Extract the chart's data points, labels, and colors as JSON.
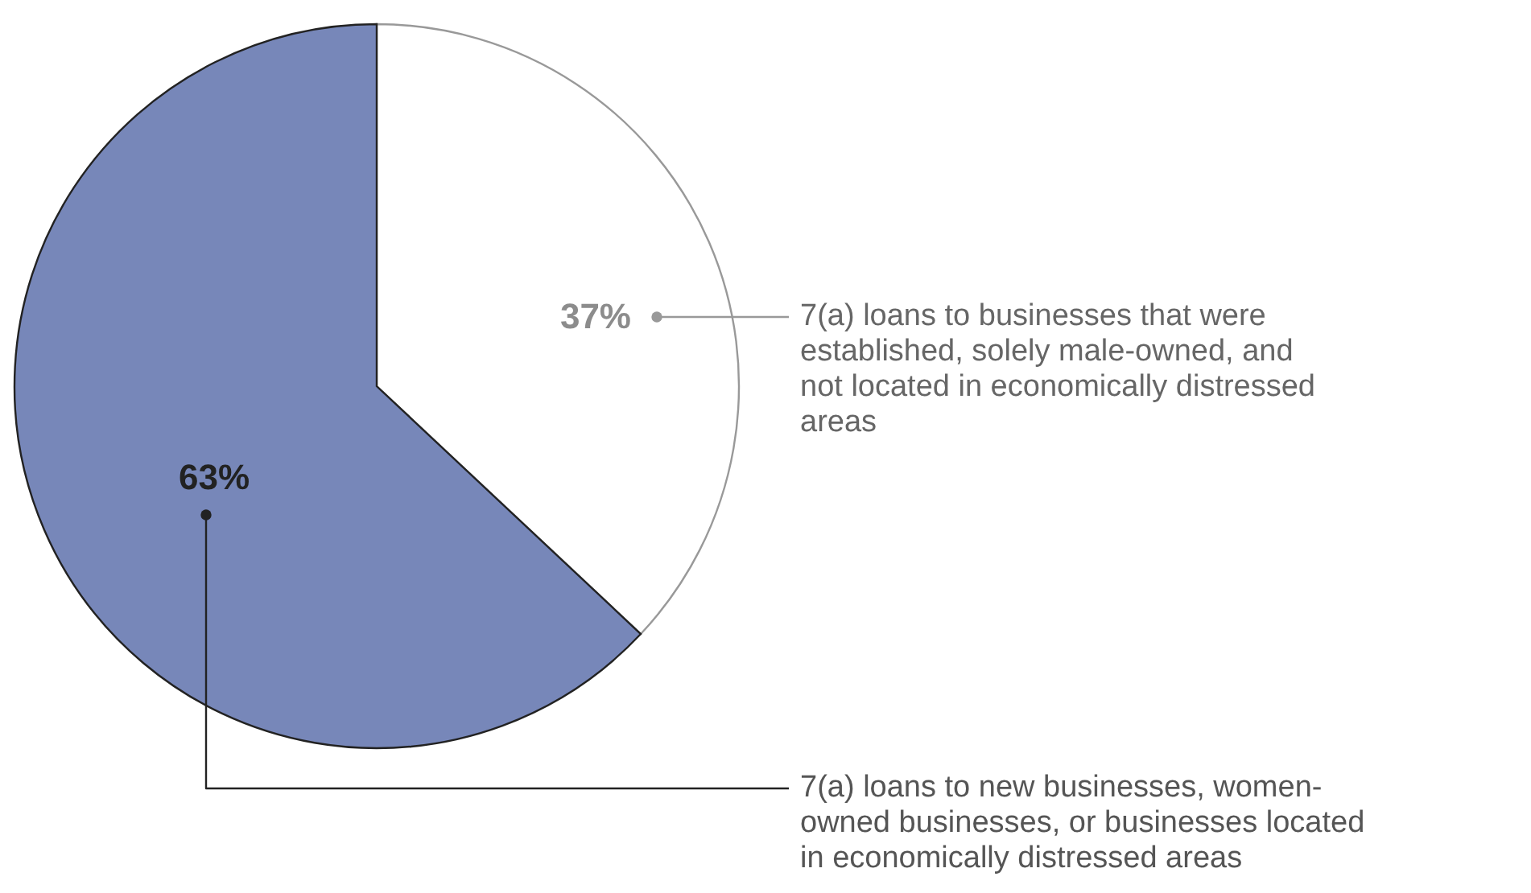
{
  "chart_data": {
    "type": "pie",
    "categories": [
      "7(a) loans to businesses that were established, solely male-owned, and not located in economically distressed areas",
      "7(a) loans to new businesses, women-owned businesses, or businesses located in economically distressed areas"
    ],
    "values": [
      37,
      63
    ],
    "colors": [
      "#ffffff",
      "#7787b9"
    ],
    "value_labels": [
      "37%",
      "63%"
    ]
  }
}
